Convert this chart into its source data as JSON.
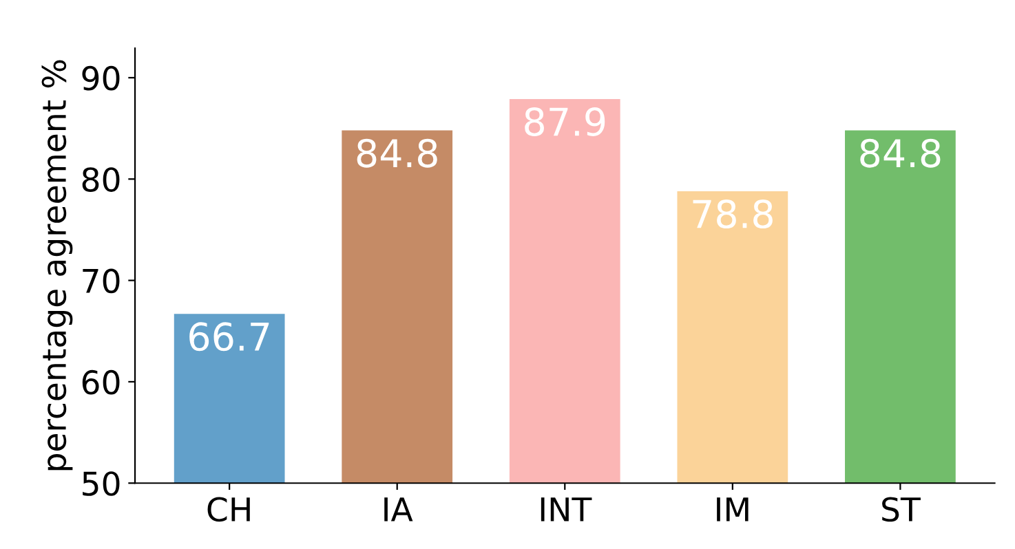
{
  "chart_data": {
    "type": "bar",
    "ylabel": "percentage agreement %",
    "categories": [
      "CH",
      "IA",
      "INT",
      "IM",
      "ST"
    ],
    "values": [
      66.7,
      84.8,
      87.9,
      78.8,
      84.8
    ],
    "colors": [
      "#62a0ca",
      "#c58b66",
      "#fbb6b5",
      "#fbd399",
      "#72bd6b"
    ],
    "ylim": [
      50,
      92.9
    ],
    "yticks": [
      50,
      60,
      70,
      80,
      90
    ],
    "grid": false,
    "data_labels": true
  }
}
